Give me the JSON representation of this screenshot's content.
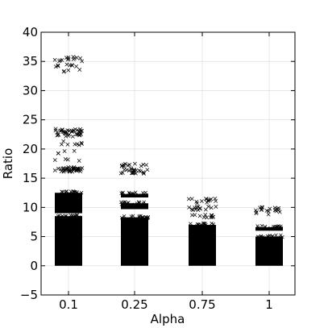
{
  "chart_data": {
    "type": "scatter",
    "title": "",
    "xlabel": "Alpha",
    "ylabel": "Ratio",
    "categories": [
      "0.1",
      "0.25",
      "0.75",
      "1"
    ],
    "ylim": [
      -5,
      40
    ],
    "yticks": [
      "−5",
      "0",
      "5",
      "10",
      "15",
      "20",
      "25",
      "30",
      "35",
      "40"
    ],
    "yticks_values": [
      -5,
      0,
      5,
      10,
      15,
      20,
      25,
      30,
      35,
      40
    ],
    "grid": true,
    "marker": "x",
    "marker_color": "#000000",
    "series": [
      {
        "category": "0.1",
        "dense_bands": [
          [
            0,
            8.5
          ],
          [
            9,
            12.5
          ]
        ],
        "clusters": [
          [
            16.5,
            0.4,
            40
          ],
          [
            18.2,
            0.3,
            4
          ],
          [
            19.5,
            0.3,
            4
          ],
          [
            21,
            0.4,
            8
          ],
          [
            22.8,
            0.7,
            40
          ],
          [
            33.5,
            0.3,
            4
          ],
          [
            34.3,
            0.3,
            8
          ],
          [
            35.4,
            0.4,
            14
          ]
        ]
      },
      {
        "category": "0.25",
        "dense_bands": [
          [
            0,
            8.3
          ],
          [
            9.7,
            10.7
          ],
          [
            11.7,
            12.3
          ]
        ],
        "clusters": [
          [
            16.1,
            0.4,
            22
          ],
          [
            17.1,
            0.4,
            12
          ]
        ]
      },
      {
        "category": "0.75",
        "dense_bands": [
          [
            0,
            7
          ]
        ],
        "clusters": [
          [
            8.5,
            0.3,
            12
          ],
          [
            9.8,
            0.4,
            14
          ],
          [
            11.1,
            0.4,
            14
          ]
        ]
      },
      {
        "category": "1",
        "dense_bands": [
          [
            0,
            5
          ],
          [
            6,
            6.6
          ]
        ],
        "clusters": [
          [
            9.2,
            0.4,
            12
          ],
          [
            10,
            0.3,
            8
          ]
        ]
      }
    ]
  }
}
